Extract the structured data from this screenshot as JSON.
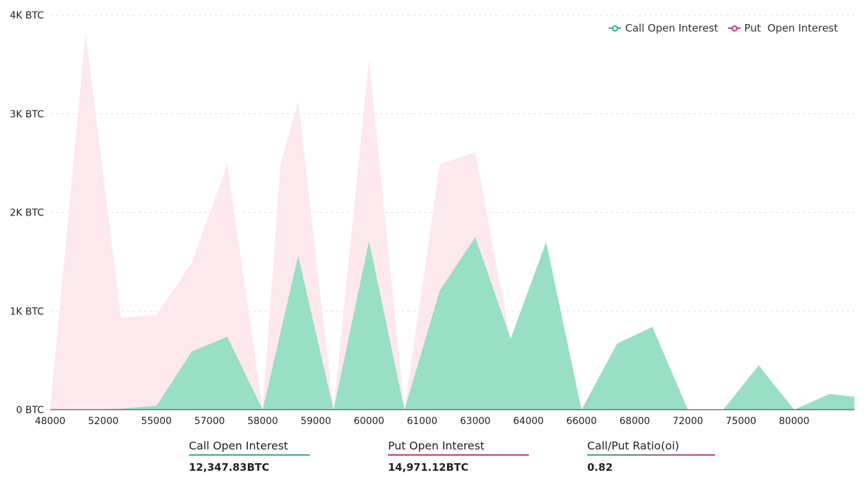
{
  "chart_data": {
    "type": "area",
    "x_tick_labels": [
      "48000",
      "52000",
      "55000",
      "57000",
      "58000",
      "59000",
      "60000",
      "61000",
      "63000",
      "64000",
      "66000",
      "68000",
      "72000",
      "75000",
      "80000"
    ],
    "y_tick_labels": [
      "0 BTC",
      "1K BTC",
      "2K BTC",
      "3K BTC",
      "4K BTC"
    ],
    "ylim": [
      0,
      4000
    ],
    "grid": true,
    "legend_position": "top-right",
    "series": [
      {
        "name": "Put  Open Interest",
        "color": "#fde8ee",
        "legend_color": "#d6345f",
        "points": [
          [
            0,
            0
          ],
          [
            1,
            3820
          ],
          [
            2,
            930
          ],
          [
            3,
            960
          ],
          [
            4,
            1490
          ],
          [
            5,
            2490
          ],
          [
            6,
            0
          ],
          [
            6.5,
            2490
          ],
          [
            7,
            3130
          ],
          [
            8,
            0
          ],
          [
            9,
            3550
          ],
          [
            10,
            0
          ],
          [
            11,
            2490
          ],
          [
            12,
            2610
          ],
          [
            13,
            700
          ],
          [
            14,
            0
          ]
        ]
      },
      {
        "name": "Call Open Interest",
        "color": "#98dfc5",
        "legend_color": "#2bb080",
        "points": [
          [
            0,
            0
          ],
          [
            1,
            0
          ],
          [
            2,
            10
          ],
          [
            3,
            40
          ],
          [
            4,
            590
          ],
          [
            5,
            740
          ],
          [
            6,
            0
          ],
          [
            7,
            1560
          ],
          [
            8,
            0
          ],
          [
            9,
            1710
          ],
          [
            10,
            0
          ],
          [
            11,
            1210
          ],
          [
            12,
            1750
          ],
          [
            13,
            720
          ],
          [
            14,
            1700
          ],
          [
            15,
            0
          ],
          [
            16,
            670
          ],
          [
            17,
            840
          ],
          [
            18,
            0
          ],
          [
            19,
            0
          ],
          [
            20,
            450
          ],
          [
            21,
            0
          ],
          [
            22,
            160
          ],
          [
            22.7,
            130
          ]
        ]
      }
    ]
  },
  "summary": {
    "call_label": "Call Open Interest",
    "call_value": "12,347.83BTC",
    "put_label": "Put Open Interest",
    "put_value": "14,971.12BTC",
    "ratio_label": "Call/Put Ratio(oi)",
    "ratio_value": "0.82"
  },
  "colors": {
    "call": "#2bb080",
    "put": "#d6345f",
    "grid": "#e3e3e3",
    "axis": "#333333"
  }
}
